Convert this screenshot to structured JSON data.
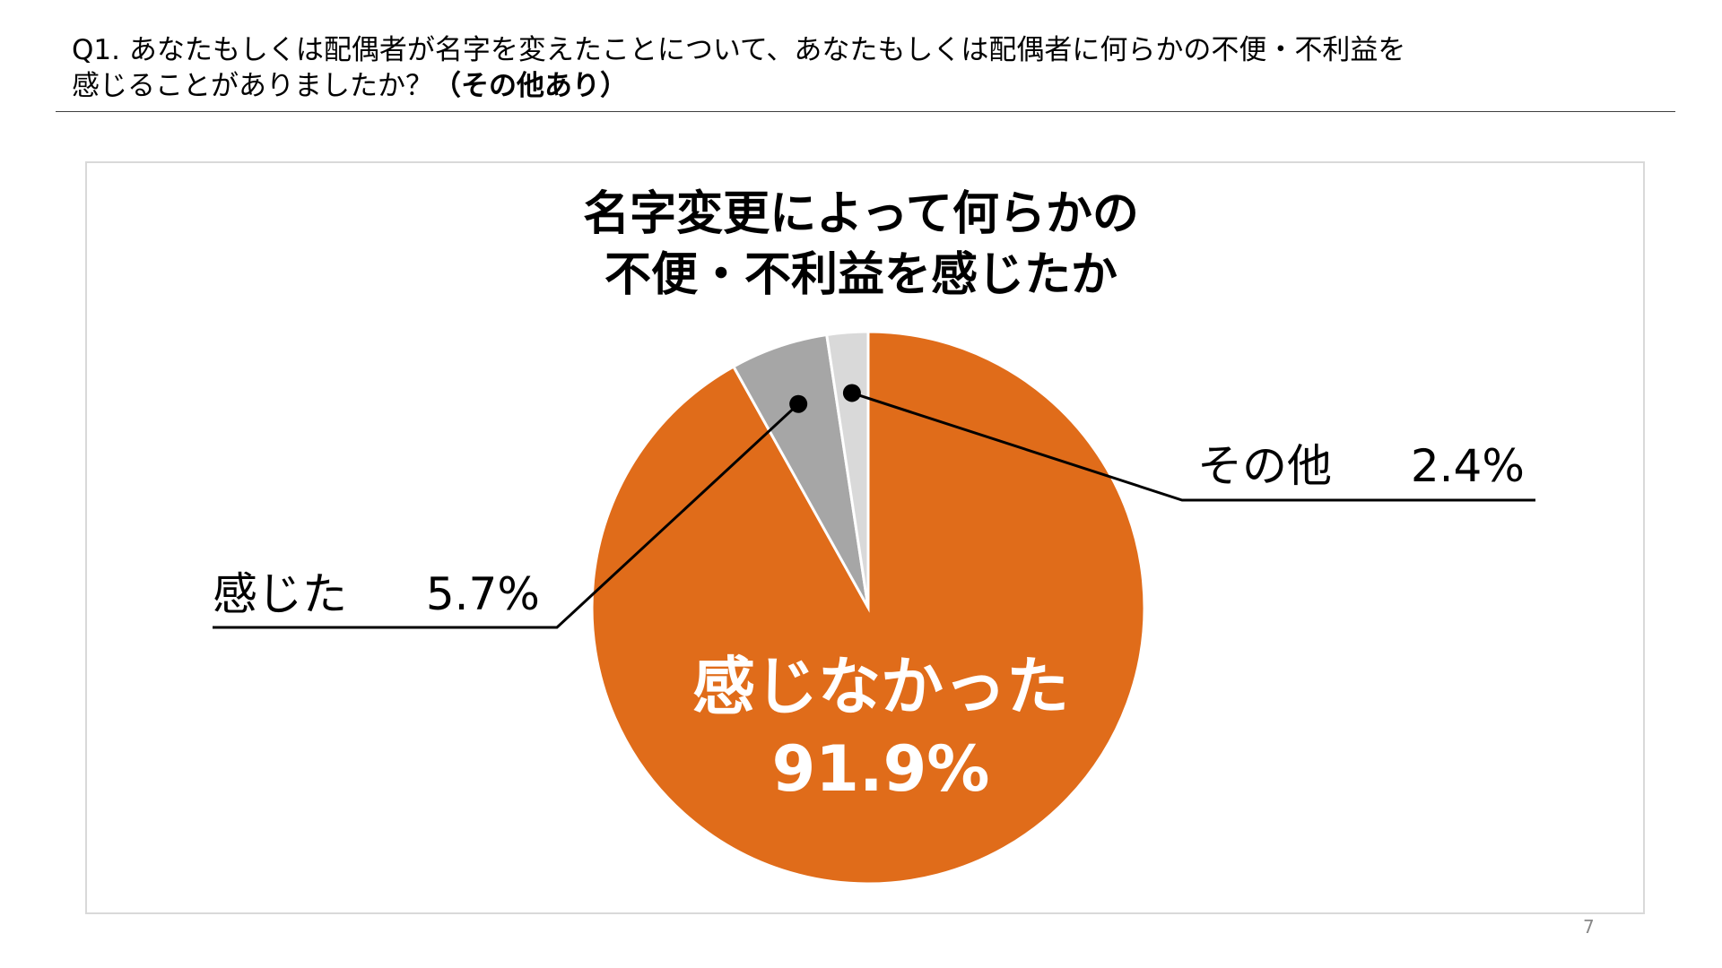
{
  "question": {
    "line1": "Q1. あなたもしくは配偶者が名字を変えたことについて、あなたもしくは配偶者に何らかの不便・不利益を",
    "line2_plain": "感じることがありましたか？",
    "line2_bold": "（その他あり）"
  },
  "chart_data": {
    "type": "pie",
    "title_lines": [
      "名字変更によって何らかの",
      "不便・不利益を感じたか"
    ],
    "slices": [
      {
        "label": "感じなかった",
        "value": 91.9,
        "value_text": "91.9%",
        "color": "#e06c1a"
      },
      {
        "label": "感じた",
        "value": 5.7,
        "value_text": "5.7%",
        "color": "#a6a6a6"
      },
      {
        "label": "その他",
        "value": 2.4,
        "value_text": "2.4%",
        "color": "#d9d9d9"
      }
    ]
  },
  "page_number": "7"
}
